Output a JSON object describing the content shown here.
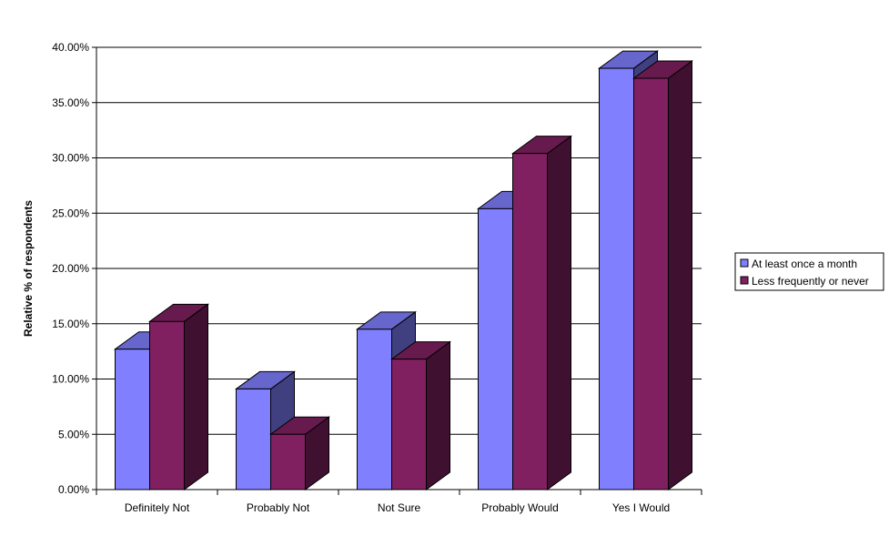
{
  "chart_data": {
    "type": "bar",
    "title": "",
    "xlabel": "",
    "ylabel": "Relative % of respondents",
    "ylim": [
      0,
      40
    ],
    "yticks": [
      0,
      5,
      10,
      15,
      20,
      25,
      30,
      35,
      40
    ],
    "ytick_labels": [
      "0.00%",
      "5.00%",
      "10.00%",
      "15.00%",
      "20.00%",
      "25.00%",
      "30.00%",
      "35.00%",
      "40.00%"
    ],
    "categories": [
      "Definitely Not",
      "Probably Not",
      "Not Sure",
      "Probably Would",
      "Yes I Would"
    ],
    "series": [
      {
        "name": "At least once a month",
        "values": [
          12.7,
          9.1,
          14.5,
          25.4,
          38.1
        ],
        "color": "#8080ff",
        "top_color": "#6666cc",
        "side_color": "#404080"
      },
      {
        "name": "Less frequently or never",
        "values": [
          15.2,
          5.0,
          11.8,
          30.4,
          37.2
        ],
        "color": "#802060",
        "top_color": "#661a4d",
        "side_color": "#401030"
      }
    ],
    "grid": true,
    "legend_position": "right",
    "style": "3d-clustered-column"
  }
}
